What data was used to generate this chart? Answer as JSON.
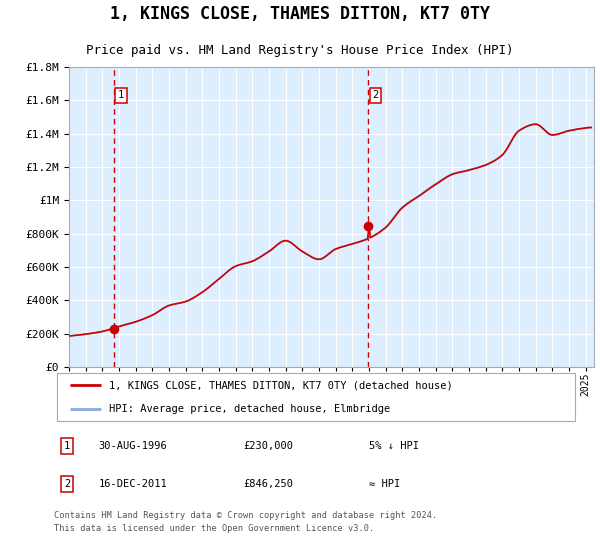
{
  "title": "1, KINGS CLOSE, THAMES DITTON, KT7 0TY",
  "subtitle": "Price paid vs. HM Land Registry's House Price Index (HPI)",
  "legend_line1": "1, KINGS CLOSE, THAMES DITTON, KT7 0TY (detached house)",
  "legend_line2": "HPI: Average price, detached house, Elmbridge",
  "annotation1_label": "1",
  "annotation1_date": "30-AUG-1996",
  "annotation1_price": "£230,000",
  "annotation1_hpi": "5% ↓ HPI",
  "annotation2_label": "2",
  "annotation2_date": "16-DEC-2011",
  "annotation2_price": "£846,250",
  "annotation2_hpi": "≈ HPI",
  "footer": "Contains HM Land Registry data © Crown copyright and database right 2024.\nThis data is licensed under the Open Government Licence v3.0.",
  "red_color": "#cc0000",
  "blue_color": "#88aadd",
  "bg_color": "#ddeeff",
  "grid_color": "#ffffff",
  "sale1_year": 1996.67,
  "sale1_value": 230000,
  "sale2_year": 2011.96,
  "sale2_value": 846250,
  "xmin": 1994.0,
  "xmax": 2025.5,
  "ymin": 0,
  "ymax": 1800000
}
